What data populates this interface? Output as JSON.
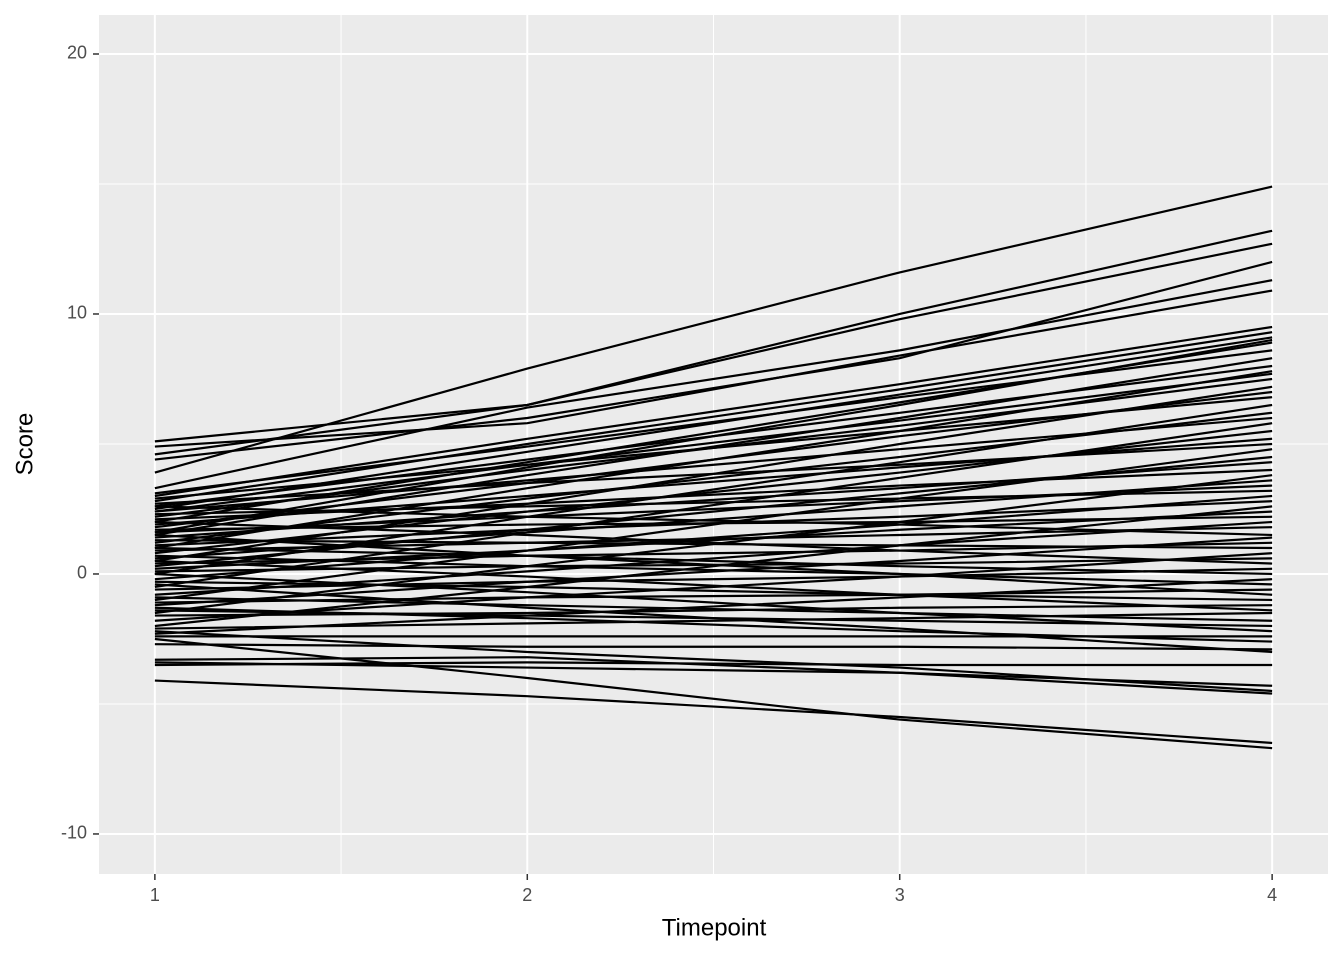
{
  "chart_data": {
    "type": "line",
    "x_label": "Timepoint",
    "y_label": "Score",
    "x": [
      1,
      2,
      3,
      4
    ],
    "xlim": [
      0.85,
      4.15
    ],
    "xticks": [
      1,
      2,
      3,
      4
    ],
    "x_minor_breaks": [
      1.5,
      2.5,
      3.5
    ],
    "ylim": [
      -11.54,
      21.5
    ],
    "yticks": [
      -10,
      0,
      10,
      20
    ],
    "y_minor_breaks": [
      -5,
      5,
      15
    ],
    "grid": true,
    "color": "#000000",
    "series": [
      {
        "values": [
          3.9,
          7.9,
          11.6,
          14.9
        ]
      },
      {
        "values": [
          5.1,
          6.5,
          10.0,
          13.2
        ]
      },
      {
        "values": [
          4.6,
          6.5,
          9.8,
          12.7
        ]
      },
      {
        "values": [
          4.4,
          6.0,
          8.3,
          12.0
        ]
      },
      {
        "values": [
          3.3,
          6.4,
          8.6,
          11.3
        ]
      },
      {
        "values": [
          4.9,
          5.8,
          8.4,
          10.9
        ]
      },
      {
        "values": [
          -4.1,
          -4.7,
          -5.5,
          -6.5
        ]
      },
      {
        "values": [
          -2.5,
          -4.0,
          -5.6,
          -6.7
        ]
      },
      {
        "values": [
          -3.4,
          -3.6,
          -3.8,
          -4.6
        ]
      },
      {
        "values": [
          -3.3,
          -3.2,
          -3.8,
          -4.3
        ]
      },
      {
        "values": [
          -2.2,
          -3.0,
          -3.6,
          -4.5
        ]
      },
      {
        "values": [
          -3.5,
          -3.4,
          -3.5,
          -3.5
        ]
      },
      {
        "values": [
          3.0,
          5.2,
          7.3,
          9.5
        ]
      },
      {
        "values": [
          2.8,
          5.0,
          7.1,
          9.3
        ]
      },
      {
        "values": [
          2.5,
          4.7,
          6.9,
          9.1
        ]
      },
      {
        "values": [
          2.0,
          4.3,
          6.6,
          8.9
        ]
      },
      {
        "values": [
          3.1,
          4.9,
          6.8,
          8.6
        ]
      },
      {
        "values": [
          1.5,
          3.8,
          6.0,
          8.3
        ]
      },
      {
        "values": [
          2.6,
          4.4,
          6.2,
          8.0
        ]
      },
      {
        "values": [
          1.0,
          3.3,
          5.5,
          7.8
        ]
      },
      {
        "values": [
          2.2,
          4.0,
          5.7,
          7.5
        ]
      },
      {
        "values": [
          0.5,
          2.7,
          5.0,
          7.2
        ]
      },
      {
        "values": [
          1.8,
          3.5,
          5.3,
          7.0
        ]
      },
      {
        "values": [
          2.9,
          4.2,
          5.5,
          6.8
        ]
      },
      {
        "values": [
          0.0,
          2.2,
          4.3,
          6.5
        ]
      },
      {
        "values": [
          1.2,
          2.9,
          4.5,
          6.2
        ]
      },
      {
        "values": [
          2.4,
          3.6,
          4.8,
          6.0
        ]
      },
      {
        "values": [
          -0.5,
          1.6,
          3.7,
          5.8
        ]
      },
      {
        "values": [
          0.8,
          2.4,
          3.9,
          5.5
        ]
      },
      {
        "values": [
          1.9,
          3.0,
          4.1,
          5.2
        ]
      },
      {
        "values": [
          2.7,
          3.5,
          4.2,
          5.0
        ]
      },
      {
        "values": [
          -1.0,
          0.9,
          2.9,
          4.8
        ]
      },
      {
        "values": [
          0.3,
          1.7,
          3.1,
          4.5
        ]
      },
      {
        "values": [
          1.4,
          2.4,
          3.3,
          4.3
        ]
      },
      {
        "values": [
          2.1,
          2.7,
          3.4,
          4.0
        ]
      },
      {
        "values": [
          -1.5,
          0.3,
          2.0,
          3.8
        ]
      },
      {
        "values": [
          0.6,
          1.6,
          2.6,
          3.6
        ]
      },
      {
        "values": [
          1.6,
          2.2,
          2.8,
          3.4
        ]
      },
      {
        "values": [
          2.3,
          2.6,
          2.9,
          3.2
        ]
      },
      {
        "values": [
          -0.2,
          0.9,
          1.9,
          3.0
        ]
      },
      {
        "values": [
          1.1,
          1.7,
          2.2,
          2.8
        ]
      },
      {
        "values": [
          -2.0,
          -0.5,
          1.1,
          2.6
        ]
      },
      {
        "values": [
          0.2,
          0.9,
          1.7,
          2.4
        ]
      },
      {
        "values": [
          1.7,
          1.9,
          2.0,
          2.2
        ]
      },
      {
        "values": [
          -0.8,
          0.1,
          1.1,
          2.0
        ]
      },
      {
        "values": [
          0.9,
          1.2,
          1.5,
          1.8
        ]
      },
      {
        "values": [
          2.6,
          2.2,
          1.9,
          1.5
        ]
      },
      {
        "values": [
          -1.2,
          -0.3,
          0.5,
          1.4
        ]
      },
      {
        "values": [
          0.4,
          0.7,
          0.9,
          1.2
        ]
      },
      {
        "values": [
          1.3,
          1.2,
          1.1,
          1.0
        ]
      },
      {
        "values": [
          -1.8,
          -0.9,
          -0.1,
          0.8
        ]
      },
      {
        "values": [
          0.1,
          0.3,
          0.4,
          0.6
        ]
      },
      {
        "values": [
          2.0,
          1.5,
          0.9,
          0.4
        ]
      },
      {
        "values": [
          -0.6,
          -0.3,
          -0.1,
          0.2
        ]
      },
      {
        "values": [
          1.0,
          0.7,
          0.3,
          0.0
        ]
      },
      {
        "values": [
          -2.3,
          -1.6,
          -0.9,
          -0.2
        ]
      },
      {
        "values": [
          0.7,
          0.3,
          0.0,
          -0.4
        ]
      },
      {
        "values": [
          -1.1,
          -0.9,
          -0.8,
          -0.6
        ]
      },
      {
        "values": [
          1.5,
          0.7,
          0.0,
          -0.8
        ]
      },
      {
        "values": [
          -0.3,
          -0.5,
          -0.8,
          -1.0
        ]
      },
      {
        "values": [
          -1.6,
          -1.5,
          -1.3,
          -1.2
        ]
      },
      {
        "values": [
          0.5,
          -0.1,
          -0.8,
          -1.4
        ]
      },
      {
        "values": [
          -2.1,
          -1.9,
          -1.7,
          -1.5
        ]
      },
      {
        "values": [
          -0.9,
          -1.2,
          -1.5,
          -1.8
        ]
      },
      {
        "values": [
          -1.4,
          -1.6,
          -1.8,
          -2.0
        ]
      },
      {
        "values": [
          0.0,
          -0.7,
          -1.5,
          -2.2
        ]
      },
      {
        "values": [
          -2.4,
          -2.4,
          -2.4,
          -2.4
        ]
      },
      {
        "values": [
          -1.3,
          -1.7,
          -2.2,
          -2.6
        ]
      },
      {
        "values": [
          -2.7,
          -2.8,
          -2.8,
          -2.9
        ]
      },
      {
        "values": [
          -0.4,
          -1.3,
          -2.1,
          -3.0
        ]
      },
      {
        "values": [
          2.4,
          4.2,
          5.9,
          7.7
        ]
      },
      {
        "values": [
          1.6,
          4.1,
          6.5,
          9.0
        ]
      }
    ]
  }
}
